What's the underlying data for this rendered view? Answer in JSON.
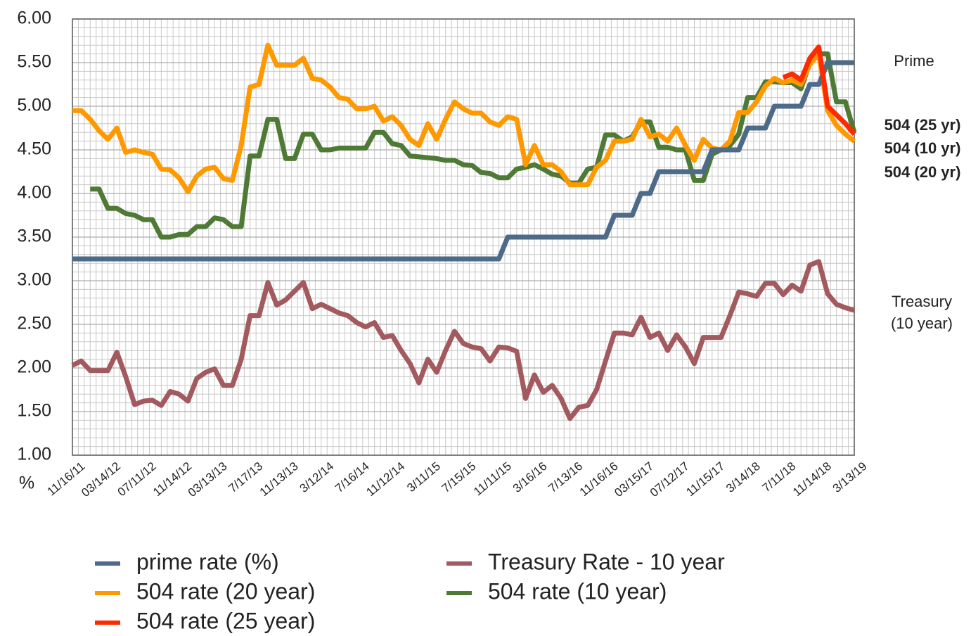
{
  "chart_data": {
    "type": "line",
    "categories": [
      "11/16/11",
      null,
      null,
      null,
      "03/14/12",
      null,
      null,
      null,
      "07/11/12",
      null,
      null,
      null,
      "11/14/12",
      null,
      null,
      null,
      "03/13/13",
      null,
      null,
      null,
      "7/17/13",
      null,
      null,
      null,
      "11/13/13",
      null,
      null,
      null,
      "3/12/14",
      null,
      null,
      null,
      "7/16/14",
      null,
      null,
      null,
      "11/12/14",
      null,
      null,
      null,
      "3/11/15",
      null,
      null,
      null,
      "7/15/15",
      null,
      null,
      null,
      "11/11/15",
      null,
      null,
      null,
      "3/16/16",
      null,
      null,
      null,
      "7/13/16",
      null,
      null,
      null,
      "11/16/16",
      null,
      null,
      null,
      "03/15/17",
      null,
      null,
      null,
      "07/12/17",
      null,
      null,
      null,
      "11/15/17",
      null,
      null,
      null,
      "3/14/18",
      null,
      null,
      null,
      "7/11/18",
      null,
      null,
      null,
      "11/14/18",
      null,
      null,
      null,
      "3/13/19"
    ],
    "series": [
      {
        "name": "prime rate (%)",
        "color": "#4d6a88",
        "values": [
          3.25,
          3.25,
          3.25,
          3.25,
          3.25,
          3.25,
          3.25,
          3.25,
          3.25,
          3.25,
          3.25,
          3.25,
          3.25,
          3.25,
          3.25,
          3.25,
          3.25,
          3.25,
          3.25,
          3.25,
          3.25,
          3.25,
          3.25,
          3.25,
          3.25,
          3.25,
          3.25,
          3.25,
          3.25,
          3.25,
          3.25,
          3.25,
          3.25,
          3.25,
          3.25,
          3.25,
          3.25,
          3.25,
          3.25,
          3.25,
          3.25,
          3.25,
          3.25,
          3.25,
          3.25,
          3.25,
          3.25,
          3.25,
          3.25,
          3.5,
          3.5,
          3.5,
          3.5,
          3.5,
          3.5,
          3.5,
          3.5,
          3.5,
          3.5,
          3.5,
          3.5,
          3.75,
          3.75,
          3.75,
          4.0,
          4.0,
          4.25,
          4.25,
          4.25,
          4.25,
          4.25,
          4.25,
          4.5,
          4.5,
          4.5,
          4.5,
          4.75,
          4.75,
          4.75,
          5.0,
          5.0,
          5.0,
          5.0,
          5.25,
          5.25,
          5.5,
          5.5,
          5.5,
          5.5
        ]
      },
      {
        "name": "504 rate (20 year)",
        "color": "#ff9900",
        "values": [
          4.95,
          4.95,
          4.85,
          4.72,
          4.62,
          4.75,
          4.47,
          4.5,
          4.47,
          4.45,
          4.28,
          4.27,
          4.18,
          4.02,
          4.2,
          4.28,
          4.3,
          4.17,
          4.15,
          4.55,
          5.22,
          5.25,
          5.7,
          5.47,
          5.47,
          5.47,
          5.55,
          5.32,
          5.3,
          5.22,
          5.1,
          5.08,
          4.97,
          4.97,
          5.0,
          4.83,
          4.88,
          4.78,
          4.62,
          4.55,
          4.8,
          4.62,
          4.85,
          5.05,
          4.97,
          4.92,
          4.92,
          4.82,
          4.78,
          4.88,
          4.85,
          4.33,
          4.55,
          4.33,
          4.33,
          4.25,
          4.1,
          4.1,
          4.1,
          4.3,
          4.38,
          4.6,
          4.6,
          4.62,
          4.85,
          4.65,
          4.68,
          4.6,
          4.75,
          4.55,
          4.38,
          4.62,
          4.52,
          4.5,
          4.6,
          4.93,
          4.93,
          5.05,
          5.23,
          5.32,
          5.27,
          5.3,
          5.25,
          5.48,
          5.6,
          4.95,
          4.78,
          4.68,
          4.6
        ]
      },
      {
        "name": "504 rate (25 year)",
        "color": "#ff2a00",
        "values": [
          null,
          null,
          null,
          null,
          null,
          null,
          null,
          null,
          null,
          null,
          null,
          null,
          null,
          null,
          null,
          null,
          null,
          null,
          null,
          null,
          null,
          null,
          null,
          null,
          null,
          null,
          null,
          null,
          null,
          null,
          null,
          null,
          null,
          null,
          null,
          null,
          null,
          null,
          null,
          null,
          null,
          null,
          null,
          null,
          null,
          null,
          null,
          null,
          null,
          null,
          null,
          null,
          null,
          null,
          null,
          null,
          null,
          null,
          null,
          null,
          null,
          null,
          null,
          null,
          null,
          null,
          null,
          null,
          null,
          null,
          null,
          null,
          null,
          null,
          null,
          null,
          null,
          null,
          null,
          null,
          5.33,
          5.37,
          5.3,
          5.55,
          5.68,
          5.0,
          4.9,
          4.8,
          4.68
        ]
      },
      {
        "name": "Treasury Rate - 10 year",
        "color": "#a35a5f",
        "values": [
          2.03,
          2.08,
          1.97,
          1.97,
          1.97,
          2.18,
          1.9,
          1.58,
          1.62,
          1.63,
          1.57,
          1.73,
          1.7,
          1.62,
          1.88,
          1.95,
          1.99,
          1.8,
          1.8,
          2.1,
          2.6,
          2.6,
          2.98,
          2.72,
          2.78,
          2.88,
          2.98,
          2.68,
          2.73,
          2.68,
          2.63,
          2.6,
          2.52,
          2.47,
          2.52,
          2.35,
          2.37,
          2.2,
          2.05,
          1.83,
          2.1,
          1.95,
          2.2,
          2.42,
          2.28,
          2.24,
          2.22,
          2.08,
          2.24,
          2.23,
          2.19,
          1.65,
          1.92,
          1.72,
          1.8,
          1.65,
          1.42,
          1.55,
          1.57,
          1.75,
          2.08,
          2.4,
          2.4,
          2.38,
          2.58,
          2.35,
          2.4,
          2.2,
          2.38,
          2.24,
          2.05,
          2.35,
          2.35,
          2.35,
          2.6,
          2.87,
          2.85,
          2.82,
          2.97,
          2.97,
          2.84,
          2.95,
          2.88,
          3.18,
          3.22,
          2.85,
          2.73,
          2.69,
          2.66
        ]
      },
      {
        "name": "504 rate (10 year)",
        "color": "#4f7a36",
        "values": [
          null,
          null,
          4.05,
          4.05,
          3.83,
          3.83,
          3.77,
          3.75,
          3.7,
          3.7,
          3.5,
          3.5,
          3.53,
          3.53,
          3.62,
          3.62,
          3.72,
          3.7,
          3.62,
          3.62,
          4.43,
          4.43,
          4.85,
          4.85,
          4.4,
          4.4,
          4.68,
          4.68,
          4.5,
          4.5,
          4.52,
          4.52,
          4.52,
          4.52,
          4.7,
          4.7,
          4.57,
          4.55,
          4.43,
          4.42,
          4.41,
          4.4,
          4.38,
          4.38,
          4.33,
          4.32,
          4.24,
          4.23,
          4.18,
          4.18,
          4.28,
          4.3,
          4.33,
          4.28,
          4.22,
          4.2,
          4.12,
          4.12,
          4.28,
          4.3,
          4.67,
          4.67,
          4.6,
          4.65,
          4.82,
          4.82,
          4.53,
          4.53,
          4.5,
          4.5,
          4.15,
          4.15,
          4.45,
          4.5,
          4.55,
          4.68,
          5.1,
          5.1,
          5.28,
          5.28,
          5.27,
          5.27,
          5.2,
          5.5,
          5.6,
          5.6,
          5.05,
          5.05,
          4.7
        ]
      }
    ],
    "ylim": [
      1,
      6
    ],
    "yticks": [
      {
        "value": 1,
        "label": "1.00"
      },
      {
        "value": 1.5,
        "label": "1.50"
      },
      {
        "value": 2,
        "label": "2.00"
      },
      {
        "value": 2.5,
        "label": "2.50"
      },
      {
        "value": 3,
        "label": "3.00"
      },
      {
        "value": 3.5,
        "label": "3.50"
      },
      {
        "value": 4,
        "label": "4.00"
      },
      {
        "value": 4.5,
        "label": "4.50"
      },
      {
        "value": 5,
        "label": "5.00"
      },
      {
        "value": 5.5,
        "label": "5.50"
      },
      {
        "value": 6,
        "label": "6.00"
      }
    ],
    "y_unit": "%",
    "grid": true,
    "annotations": [
      "Prime",
      "504 (25 yr)",
      "504 (10 yr)",
      "504 (20 yr)",
      "Treasury",
      "(10 year)"
    ]
  }
}
